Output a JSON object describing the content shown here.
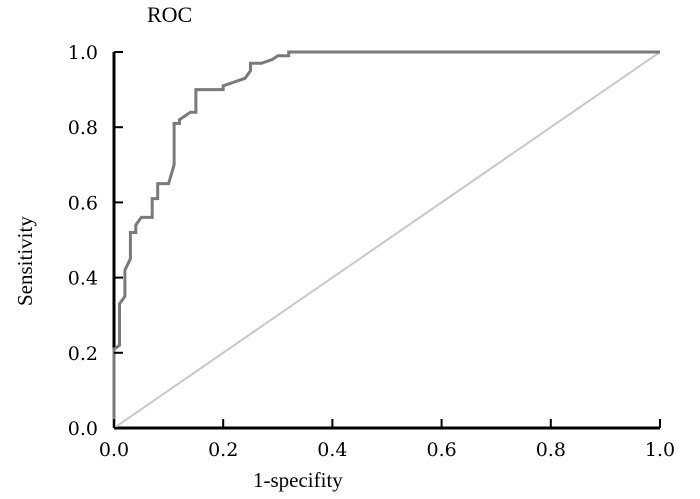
{
  "chart_data": {
    "type": "line",
    "title": "ROC",
    "xlabel": "1-specifity",
    "ylabel": "Sensitivity",
    "xlim": [
      0,
      1
    ],
    "ylim": [
      0,
      1
    ],
    "x_ticks": [
      "0.0",
      "0.2",
      "0.4",
      "0.6",
      "0.8",
      "1.0"
    ],
    "y_ticks": [
      "0.0",
      "0.2",
      "0.4",
      "0.6",
      "0.8",
      "1.0"
    ],
    "grid": false,
    "colors": {
      "roc": "#7a7a7a",
      "reference": "#c8c8c8",
      "axis": "#000000"
    },
    "series": [
      {
        "x": [
          0,
          0,
          0.01,
          0.01,
          0.02,
          0.02,
          0.03,
          0.03,
          0.04,
          0.04,
          0.05,
          0.06,
          0.07,
          0.07,
          0.08,
          0.08,
          0.09,
          0.1,
          0.11,
          0.11,
          0.12,
          0.12,
          0.13,
          0.14,
          0.15,
          0.15,
          0.16,
          0.2,
          0.2,
          0.22,
          0.24,
          0.25,
          0.25,
          0.27,
          0.29,
          0.3,
          0.3,
          0.32,
          0.32,
          1.0
        ],
        "y": [
          0,
          0.21,
          0.22,
          0.33,
          0.35,
          0.42,
          0.45,
          0.52,
          0.52,
          0.54,
          0.56,
          0.56,
          0.56,
          0.61,
          0.61,
          0.65,
          0.65,
          0.65,
          0.7,
          0.81,
          0.81,
          0.82,
          0.83,
          0.84,
          0.84,
          0.9,
          0.9,
          0.9,
          0.91,
          0.92,
          0.93,
          0.95,
          0.97,
          0.97,
          0.98,
          0.99,
          0.99,
          0.99,
          1.0,
          1.0
        ]
      },
      {
        "x": [
          0,
          1
        ],
        "y": [
          0,
          1
        ]
      }
    ]
  }
}
